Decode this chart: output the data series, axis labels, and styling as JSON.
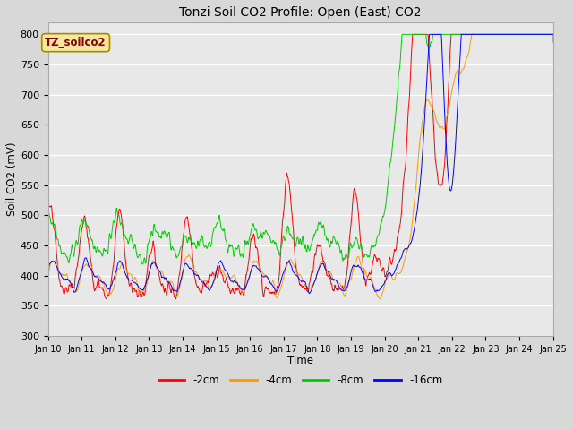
{
  "title": "Tonzi Soil CO2 Profile: Open (East) CO2",
  "xlabel": "Time",
  "ylabel": "Soil CO2 (mV)",
  "ylim": [
    300,
    820
  ],
  "yticks": [
    300,
    350,
    400,
    450,
    500,
    550,
    600,
    650,
    700,
    750,
    800
  ],
  "legend_label": "TZ_soilco2",
  "series_labels": [
    "-2cm",
    "-4cm",
    "-8cm",
    "-16cm"
  ],
  "series_colors": [
    "#ff0000",
    "#ff9900",
    "#00cc00",
    "#0000ff"
  ],
  "xtick_labels": [
    "Jan 10",
    "Jan 11",
    "Jan 12",
    "Jan 13",
    "Jan 14",
    "Jan 15",
    "Jan 16",
    "Jan 17",
    "Jan 18",
    "Jan 19",
    "Jan 20",
    "Jan 21",
    "Jan 22",
    "Jan 23",
    "Jan 24",
    "Jan 25"
  ],
  "background_color": "#d8d8d8",
  "plot_bg_color": "#e8e8e8",
  "figwidth": 6.4,
  "figheight": 4.8,
  "dpi": 100
}
